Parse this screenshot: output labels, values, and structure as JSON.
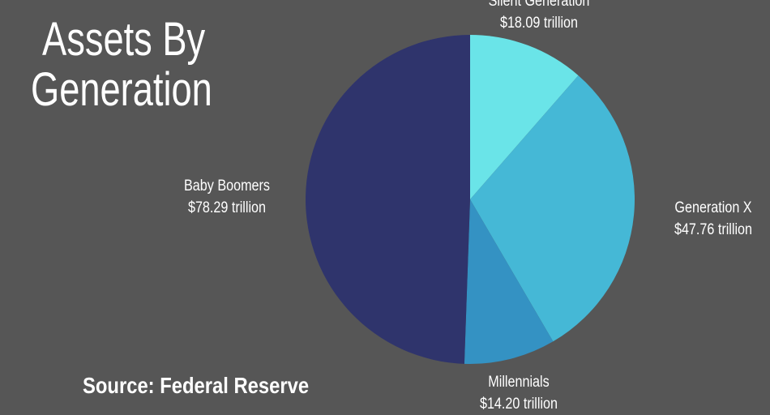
{
  "title_line1": "Assets By",
  "title_line2": "Generation",
  "source": "Source: Federal Reserve",
  "chart_data": {
    "type": "pie",
    "title": "Assets By Generation",
    "unit": "trillion USD",
    "start": "top, clockwise",
    "slices": [
      {
        "name": "Silent Generation",
        "value": 18.09,
        "label": "$18.09 trillion",
        "color": "#6ae4e8"
      },
      {
        "name": "Generation X",
        "value": 47.76,
        "label": "$47.76 trillion",
        "color": "#45b8d6"
      },
      {
        "name": "Millennials",
        "value": 14.2,
        "label": "$14.20 trillion",
        "color": "#3492c3"
      },
      {
        "name": "Baby Boomers",
        "value": 78.29,
        "label": "$78.29 trillion",
        "color": "#2f346c"
      }
    ]
  },
  "background": "#565656"
}
